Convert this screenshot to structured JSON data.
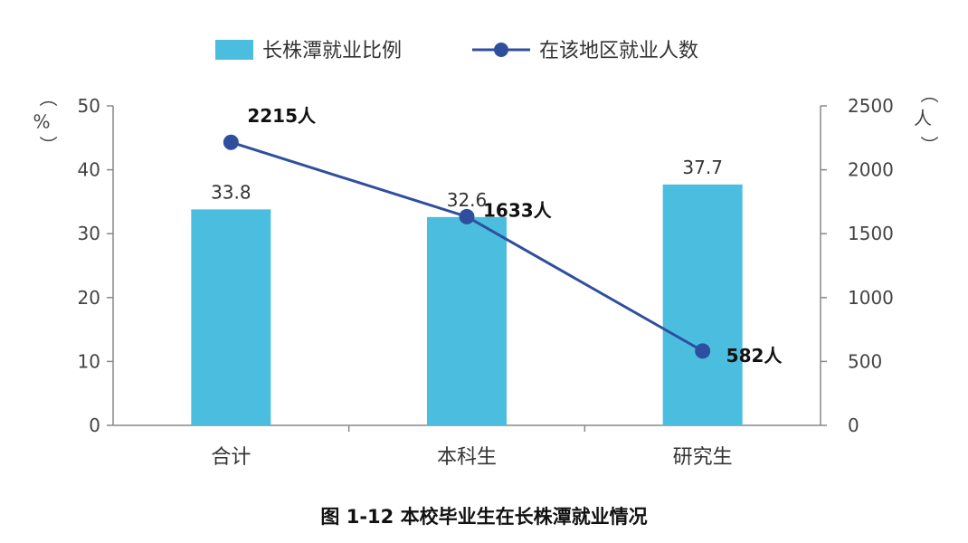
{
  "chart_data": {
    "type": "bar",
    "categories": [
      "合计",
      "本科生",
      "研究生"
    ],
    "series": [
      {
        "name": "长株潭就业比例",
        "type": "bar",
        "axis": "left",
        "values": [
          33.8,
          32.6,
          37.7
        ],
        "labels": [
          "33.8",
          "32.6",
          "37.7"
        ],
        "color": "#4bbedf"
      },
      {
        "name": "在该地区就业人数",
        "type": "line",
        "axis": "right",
        "values": [
          2215,
          1633,
          582
        ],
        "labels": [
          "2215人",
          "1633人",
          "582人"
        ],
        "color": "#2f4f9e"
      }
    ],
    "left_axis": {
      "unit_open": "（",
      "unit": "%",
      "unit_close": "）",
      "ylim": [
        0,
        50
      ],
      "ticks": [
        "0",
        "10",
        "20",
        "30",
        "40",
        "50"
      ]
    },
    "right_axis": {
      "unit_open": "（",
      "unit": "人",
      "unit_close": "）",
      "ylim": [
        0,
        2500
      ],
      "ticks": [
        "0",
        "500",
        "1000",
        "1500",
        "2000",
        "2500"
      ]
    },
    "legend_position": "top-center",
    "grid": false
  },
  "caption": "图 1-12 本校毕业生在长株潭就业情况"
}
